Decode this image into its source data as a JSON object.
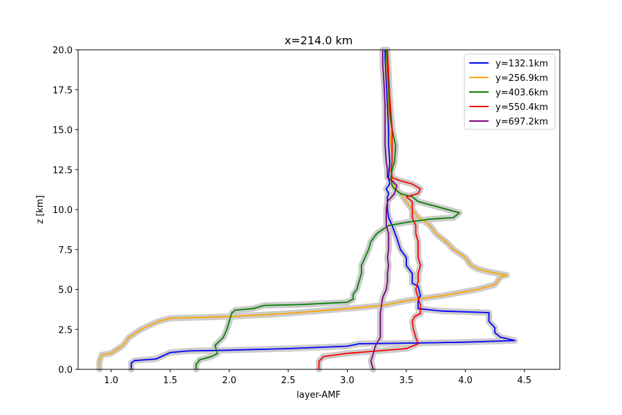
{
  "chart_data": {
    "type": "line",
    "title": "x=214.0 km",
    "xlabel": "layer-AMF",
    "ylabel": "z [km]",
    "xlim": [
      0.72,
      4.8
    ],
    "ylim": [
      0,
      20
    ],
    "xticks": [
      1.0,
      1.5,
      2.0,
      2.5,
      3.0,
      3.5,
      4.0,
      4.5
    ],
    "xtick_labels": [
      "1.0",
      "1.5",
      "2.0",
      "2.5",
      "3.0",
      "3.5",
      "4.0",
      "4.5"
    ],
    "yticks": [
      0,
      2.5,
      5,
      7.5,
      10,
      12.5,
      15,
      17.5,
      20
    ],
    "ytick_labels": [
      "0.0",
      "2.5",
      "5.0",
      "7.5",
      "10.0",
      "12.5",
      "15.0",
      "17.5",
      "20.0"
    ],
    "grid": false,
    "legend_position": "top-right",
    "uncertainty_band_color": "#cccccc",
    "series": [
      {
        "name": "y=132.1km",
        "color": "#0000ff",
        "points": [
          [
            1.17,
            0
          ],
          [
            1.17,
            0.4
          ],
          [
            1.2,
            0.55
          ],
          [
            1.38,
            0.65
          ],
          [
            1.5,
            1.05
          ],
          [
            1.65,
            1.15
          ],
          [
            2.0,
            1.2
          ],
          [
            2.5,
            1.3
          ],
          [
            3.0,
            1.45
          ],
          [
            3.1,
            1.6
          ],
          [
            3.6,
            1.65
          ],
          [
            4.0,
            1.7
          ],
          [
            4.42,
            1.8
          ],
          [
            4.3,
            2.0
          ],
          [
            4.25,
            2.3
          ],
          [
            4.25,
            2.6
          ],
          [
            4.2,
            3.0
          ],
          [
            4.2,
            3.55
          ],
          [
            3.8,
            3.65
          ],
          [
            3.6,
            3.8
          ],
          [
            3.6,
            4.3
          ],
          [
            3.62,
            4.6
          ],
          [
            3.6,
            5.2
          ],
          [
            3.55,
            5.4
          ],
          [
            3.55,
            6.0
          ],
          [
            3.5,
            6.5
          ],
          [
            3.5,
            7.0
          ],
          [
            3.45,
            7.5
          ],
          [
            3.42,
            8.2
          ],
          [
            3.4,
            8.6
          ],
          [
            3.38,
            9.0
          ],
          [
            3.35,
            9.5
          ],
          [
            3.34,
            10.0
          ],
          [
            3.34,
            10.8
          ],
          [
            3.35,
            11.0
          ],
          [
            3.33,
            11.3
          ],
          [
            3.36,
            11.6
          ],
          [
            3.35,
            12.0
          ],
          [
            3.36,
            13.0
          ],
          [
            3.35,
            14.0
          ],
          [
            3.35,
            15.0
          ],
          [
            3.34,
            16.5
          ],
          [
            3.33,
            18.0
          ],
          [
            3.32,
            19.5
          ],
          [
            3.32,
            20
          ]
        ]
      },
      {
        "name": "y=256.9km",
        "color": "#ffa500",
        "points": [
          [
            0.9,
            0
          ],
          [
            0.9,
            0.5
          ],
          [
            0.92,
            0.9
          ],
          [
            1.0,
            1.0
          ],
          [
            1.1,
            1.5
          ],
          [
            1.15,
            2.0
          ],
          [
            1.25,
            2.5
          ],
          [
            1.4,
            3.0
          ],
          [
            1.5,
            3.2
          ],
          [
            2.0,
            3.3
          ],
          [
            2.5,
            3.5
          ],
          [
            3.0,
            3.8
          ],
          [
            3.3,
            4.0
          ],
          [
            3.5,
            4.3
          ],
          [
            3.8,
            4.6
          ],
          [
            4.1,
            5.0
          ],
          [
            4.25,
            5.3
          ],
          [
            4.3,
            5.8
          ],
          [
            4.35,
            5.9
          ],
          [
            4.2,
            6.1
          ],
          [
            4.1,
            6.3
          ],
          [
            4.05,
            6.5
          ],
          [
            4.0,
            7.0
          ],
          [
            3.9,
            7.5
          ],
          [
            3.85,
            7.9
          ],
          [
            3.75,
            8.5
          ],
          [
            3.7,
            9.0
          ],
          [
            3.65,
            9.3
          ],
          [
            3.6,
            9.5
          ],
          [
            3.55,
            10.0
          ],
          [
            3.5,
            10.5
          ],
          [
            3.45,
            11.0
          ],
          [
            3.4,
            11.4
          ],
          [
            3.38,
            12.0
          ],
          [
            3.37,
            12.5
          ],
          [
            3.38,
            13.0
          ],
          [
            3.37,
            14.0
          ],
          [
            3.36,
            15.0
          ],
          [
            3.35,
            16.5
          ],
          [
            3.34,
            18.0
          ],
          [
            3.33,
            19.5
          ],
          [
            3.33,
            20
          ]
        ]
      },
      {
        "name": "y=403.6km",
        "color": "#008000",
        "points": [
          [
            1.72,
            0
          ],
          [
            1.72,
            0.3
          ],
          [
            1.75,
            0.6
          ],
          [
            1.85,
            0.8
          ],
          [
            1.9,
            1.0
          ],
          [
            1.88,
            1.5
          ],
          [
            1.95,
            2.0
          ],
          [
            1.98,
            2.5
          ],
          [
            2.0,
            3.0
          ],
          [
            2.02,
            3.5
          ],
          [
            2.05,
            3.7
          ],
          [
            2.2,
            3.8
          ],
          [
            2.3,
            4.0
          ],
          [
            2.6,
            4.05
          ],
          [
            3.0,
            4.2
          ],
          [
            3.05,
            4.4
          ],
          [
            3.05,
            4.7
          ],
          [
            3.08,
            5.0
          ],
          [
            3.1,
            5.5
          ],
          [
            3.12,
            6.0
          ],
          [
            3.12,
            6.5
          ],
          [
            3.15,
            7.0
          ],
          [
            3.18,
            7.5
          ],
          [
            3.2,
            8.0
          ],
          [
            3.25,
            8.5
          ],
          [
            3.35,
            9.0
          ],
          [
            3.5,
            9.2
          ],
          [
            3.7,
            9.4
          ],
          [
            3.9,
            9.5
          ],
          [
            3.95,
            9.8
          ],
          [
            3.8,
            10.1
          ],
          [
            3.6,
            10.5
          ],
          [
            3.55,
            10.8
          ],
          [
            3.45,
            11.0
          ],
          [
            3.4,
            11.3
          ],
          [
            3.38,
            11.5
          ],
          [
            3.37,
            12.0
          ],
          [
            3.38,
            12.5
          ],
          [
            3.4,
            13.0
          ],
          [
            3.41,
            14.0
          ],
          [
            3.38,
            15.0
          ],
          [
            3.36,
            16.0
          ],
          [
            3.35,
            17.5
          ],
          [
            3.34,
            19.0
          ],
          [
            3.33,
            20
          ]
        ]
      },
      {
        "name": "y=550.4km",
        "color": "#ff0000",
        "points": [
          [
            2.76,
            0
          ],
          [
            2.76,
            0.5
          ],
          [
            2.8,
            0.8
          ],
          [
            3.0,
            1.0
          ],
          [
            3.5,
            1.3
          ],
          [
            3.6,
            1.6
          ],
          [
            3.58,
            2.0
          ],
          [
            3.56,
            2.5
          ],
          [
            3.55,
            3.0
          ],
          [
            3.57,
            3.3
          ],
          [
            3.62,
            3.5
          ],
          [
            3.62,
            4.0
          ],
          [
            3.6,
            4.5
          ],
          [
            3.58,
            5.0
          ],
          [
            3.6,
            5.5
          ],
          [
            3.6,
            6.0
          ],
          [
            3.62,
            6.5
          ],
          [
            3.6,
            7.0
          ],
          [
            3.6,
            7.5
          ],
          [
            3.6,
            8.0
          ],
          [
            3.58,
            8.5
          ],
          [
            3.58,
            9.0
          ],
          [
            3.55,
            9.5
          ],
          [
            3.55,
            10.0
          ],
          [
            3.55,
            10.5
          ],
          [
            3.5,
            10.8
          ],
          [
            3.6,
            11.0
          ],
          [
            3.62,
            11.3
          ],
          [
            3.55,
            11.6
          ],
          [
            3.45,
            11.8
          ],
          [
            3.38,
            12.0
          ],
          [
            3.37,
            12.5
          ],
          [
            3.38,
            13.0
          ],
          [
            3.38,
            14.0
          ],
          [
            3.38,
            15.0
          ],
          [
            3.37,
            16.0
          ],
          [
            3.36,
            17.0
          ],
          [
            3.35,
            18.5
          ],
          [
            3.34,
            20
          ]
        ]
      },
      {
        "name": "y=697.2km",
        "color": "#800080",
        "points": [
          [
            3.22,
            0
          ],
          [
            3.2,
            0.5
          ],
          [
            3.22,
            1.0
          ],
          [
            3.24,
            1.5
          ],
          [
            3.28,
            2.0
          ],
          [
            3.28,
            2.5
          ],
          [
            3.28,
            3.0
          ],
          [
            3.28,
            3.5
          ],
          [
            3.29,
            4.0
          ],
          [
            3.3,
            4.5
          ],
          [
            3.33,
            5.0
          ],
          [
            3.34,
            5.5
          ],
          [
            3.34,
            6.0
          ],
          [
            3.35,
            6.5
          ],
          [
            3.34,
            7.0
          ],
          [
            3.35,
            7.5
          ],
          [
            3.35,
            8.0
          ],
          [
            3.35,
            8.5
          ],
          [
            3.33,
            9.0
          ],
          [
            3.33,
            9.5
          ],
          [
            3.33,
            10.0
          ],
          [
            3.34,
            10.5
          ],
          [
            3.4,
            11.0
          ],
          [
            3.42,
            11.5
          ],
          [
            3.38,
            11.8
          ],
          [
            3.34,
            12.0
          ],
          [
            3.34,
            12.5
          ],
          [
            3.33,
            13.0
          ],
          [
            3.32,
            14.0
          ],
          [
            3.32,
            15.0
          ],
          [
            3.32,
            16.5
          ],
          [
            3.31,
            18.0
          ],
          [
            3.3,
            19.0
          ],
          [
            3.3,
            20
          ]
        ]
      }
    ]
  }
}
